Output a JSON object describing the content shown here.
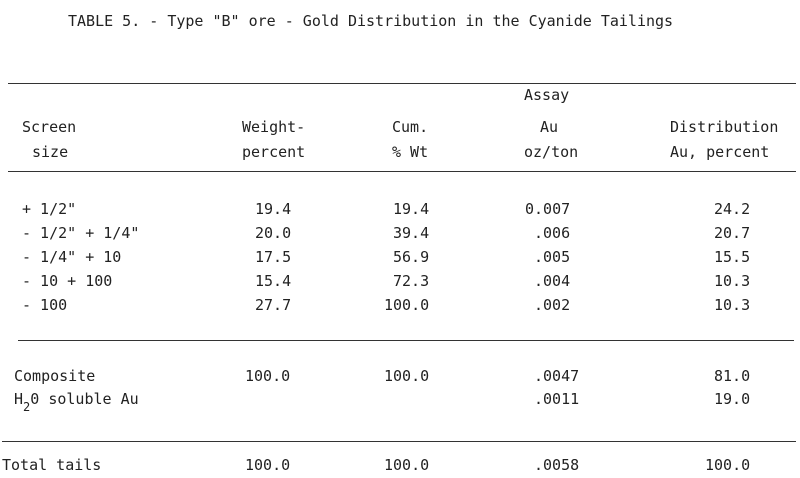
{
  "title": "TABLE 5. - Type \"B\" ore - Gold Distribution in the Cyanide Tailings",
  "headers": {
    "screen": [
      "Screen",
      "size"
    ],
    "weight": [
      "Weight-",
      "percent"
    ],
    "cum": [
      "Cum.",
      "% Wt"
    ],
    "assay": [
      "Assay",
      "Au",
      "oz/ton"
    ],
    "distribution": [
      "Distribution",
      "Au, percent"
    ]
  },
  "rows": [
    {
      "screen": "+ 1/2\"",
      "weight": "19.4",
      "cum": "19.4",
      "assay": "0.007",
      "dist": "24.2"
    },
    {
      "screen": "- 1/2\" + 1/4\"",
      "weight": "20.0",
      "cum": "39.4",
      "assay": ".006",
      "dist": "20.7"
    },
    {
      "screen": "- 1/4\" + 10",
      "weight": "17.5",
      "cum": "56.9",
      "assay": ".005",
      "dist": "15.5"
    },
    {
      "screen": "- 10 + 100",
      "weight": "15.4",
      "cum": "72.3",
      "assay": ".004",
      "dist": "10.3"
    },
    {
      "screen": "- 100",
      "weight": "27.7",
      "cum": "100.0",
      "assay": ".002",
      "dist": "10.3"
    }
  ],
  "composite": {
    "label": "Composite",
    "weight": "100.0",
    "cum": "100.0",
    "assay": ".0047",
    "dist": "81.0"
  },
  "soluble": {
    "label_pre": "H",
    "label_sub": "2",
    "label_post": "0 soluble Au",
    "assay": ".0011",
    "dist": "19.0"
  },
  "total": {
    "label": "Total tails",
    "weight": "100.0",
    "cum": "100.0",
    "assay": ".0058",
    "dist": "100.0"
  }
}
